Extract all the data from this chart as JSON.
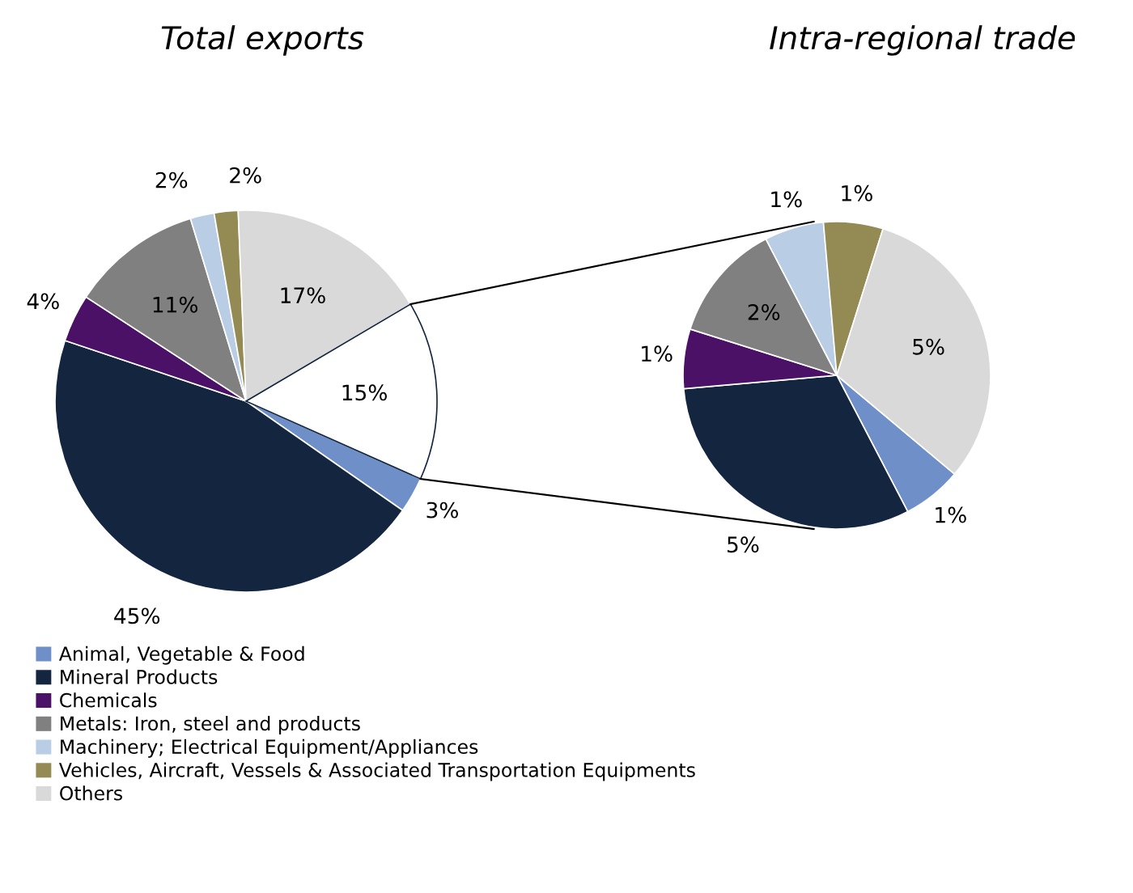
{
  "chart_data": [
    {
      "type": "pie",
      "title": "Total exports",
      "categories": [
        "Animal, Vegetable & Food",
        "Mineral Products",
        "Chemicals",
        "Metals: Iron, steel and products",
        "Machinery; Electrical Equipment/Appliances",
        "Vehicles, Aircraft, Vessels & Associated Transportation Equipments",
        "Others",
        null
      ],
      "values": [
        3,
        45,
        4,
        11,
        2,
        2,
        17,
        15
      ],
      "value_labels": [
        "3%",
        "45%",
        "4%",
        "11%",
        "2%",
        "2%",
        "17%",
        "15%"
      ],
      "colors": [
        "#6f8fc9",
        "#13253f",
        "#4b1166",
        "#808080",
        "#b9cde5",
        "#948a54",
        "#d9d9d9",
        "#ffffff"
      ],
      "legend": "bottom"
    },
    {
      "type": "pie",
      "title": "Intra-regional trade",
      "categories": [
        null,
        null,
        null,
        null,
        null,
        null,
        null
      ],
      "values": [
        1,
        5,
        1,
        2,
        1,
        1,
        5
      ],
      "value_labels": [
        "1%",
        "5%",
        "1%",
        "2%",
        "1%",
        "1%",
        "5%"
      ],
      "colors": [
        "#6f8fc9",
        "#13253f",
        "#4b1166",
        "#808080",
        "#b9cde5",
        "#948a54",
        "#d9d9d9"
      ]
    }
  ]
}
